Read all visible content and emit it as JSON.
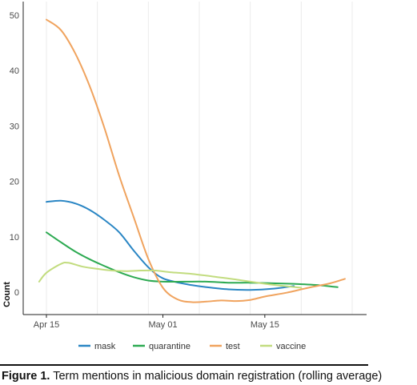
{
  "caption": {
    "figure_label": "Figure 1.",
    "text": "Term mentions in malicious domain registration (rolling average)"
  },
  "chart_data": {
    "type": "line",
    "title": "",
    "xlabel": "",
    "ylabel": "Count",
    "xlim": [
      "2020-04-15",
      "2020-05-27"
    ],
    "ylim": [
      0,
      50
    ],
    "x_ticks": [
      {
        "date": "2020-04-15",
        "label": "Apr 15"
      },
      {
        "date": "2020-05-01",
        "label": "May 01"
      },
      {
        "date": "2020-05-15",
        "label": "May 15"
      }
    ],
    "y_ticks": [
      0,
      10,
      20,
      30,
      40,
      50
    ],
    "grid": "vertical",
    "legend_position": "bottom",
    "series": [
      {
        "name": "mask",
        "color": "#2a86c4",
        "points": [
          [
            "2020-04-15",
            16.3
          ],
          [
            "2020-04-17",
            16.5
          ],
          [
            "2020-04-19",
            16.0
          ],
          [
            "2020-04-21",
            14.8
          ],
          [
            "2020-04-23",
            13.0
          ],
          [
            "2020-04-25",
            10.8
          ],
          [
            "2020-04-27",
            7.5
          ],
          [
            "2020-04-29",
            4.5
          ],
          [
            "2020-05-01",
            2.5
          ],
          [
            "2020-05-04",
            1.5
          ],
          [
            "2020-05-07",
            0.9
          ],
          [
            "2020-05-10",
            0.5
          ],
          [
            "2020-05-13",
            0.4
          ],
          [
            "2020-05-16",
            0.6
          ],
          [
            "2020-05-19",
            1.1
          ]
        ]
      },
      {
        "name": "quarantine",
        "color": "#2daa52",
        "points": [
          [
            "2020-04-15",
            10.8
          ],
          [
            "2020-04-17",
            9.0
          ],
          [
            "2020-04-19",
            7.3
          ],
          [
            "2020-04-21",
            5.9
          ],
          [
            "2020-04-23",
            4.7
          ],
          [
            "2020-04-25",
            3.6
          ],
          [
            "2020-04-27",
            2.7
          ],
          [
            "2020-04-29",
            2.1
          ],
          [
            "2020-05-01",
            1.9
          ],
          [
            "2020-05-04",
            1.9
          ],
          [
            "2020-05-07",
            1.9
          ],
          [
            "2020-05-10",
            1.7
          ],
          [
            "2020-05-13",
            1.7
          ],
          [
            "2020-05-16",
            1.6
          ],
          [
            "2020-05-19",
            1.5
          ],
          [
            "2020-05-22",
            1.3
          ],
          [
            "2020-05-25",
            0.9
          ]
        ]
      },
      {
        "name": "test",
        "color": "#f0a35e",
        "points": [
          [
            "2020-04-15",
            49.2
          ],
          [
            "2020-04-17",
            47.3
          ],
          [
            "2020-04-19",
            43.0
          ],
          [
            "2020-04-21",
            37.0
          ],
          [
            "2020-04-23",
            29.5
          ],
          [
            "2020-04-25",
            21.0
          ],
          [
            "2020-04-27",
            13.5
          ],
          [
            "2020-04-29",
            6.0
          ],
          [
            "2020-05-01",
            0.8
          ],
          [
            "2020-05-03",
            -1.3
          ],
          [
            "2020-05-05",
            -1.8
          ],
          [
            "2020-05-07",
            -1.7
          ],
          [
            "2020-05-09",
            -1.5
          ],
          [
            "2020-05-11",
            -1.6
          ],
          [
            "2020-05-13",
            -1.4
          ],
          [
            "2020-05-15",
            -0.8
          ],
          [
            "2020-05-18",
            -0.1
          ],
          [
            "2020-05-21",
            0.8
          ],
          [
            "2020-05-24",
            1.6
          ],
          [
            "2020-05-26",
            2.4
          ]
        ]
      },
      {
        "name": "vaccine",
        "color": "#c2dc7f",
        "points": [
          [
            "2020-04-14",
            1.9
          ],
          [
            "2020-04-15",
            3.5
          ],
          [
            "2020-04-17",
            5.1
          ],
          [
            "2020-04-18",
            5.3
          ],
          [
            "2020-04-20",
            4.6
          ],
          [
            "2020-04-22",
            4.2
          ],
          [
            "2020-04-24",
            3.9
          ],
          [
            "2020-04-26",
            3.8
          ],
          [
            "2020-04-28",
            3.9
          ],
          [
            "2020-04-30",
            3.9
          ],
          [
            "2020-05-02",
            3.6
          ],
          [
            "2020-05-05",
            3.3
          ],
          [
            "2020-05-08",
            2.8
          ],
          [
            "2020-05-11",
            2.3
          ],
          [
            "2020-05-14",
            1.7
          ],
          [
            "2020-05-17",
            1.2
          ],
          [
            "2020-05-20",
            0.8
          ]
        ]
      }
    ]
  }
}
